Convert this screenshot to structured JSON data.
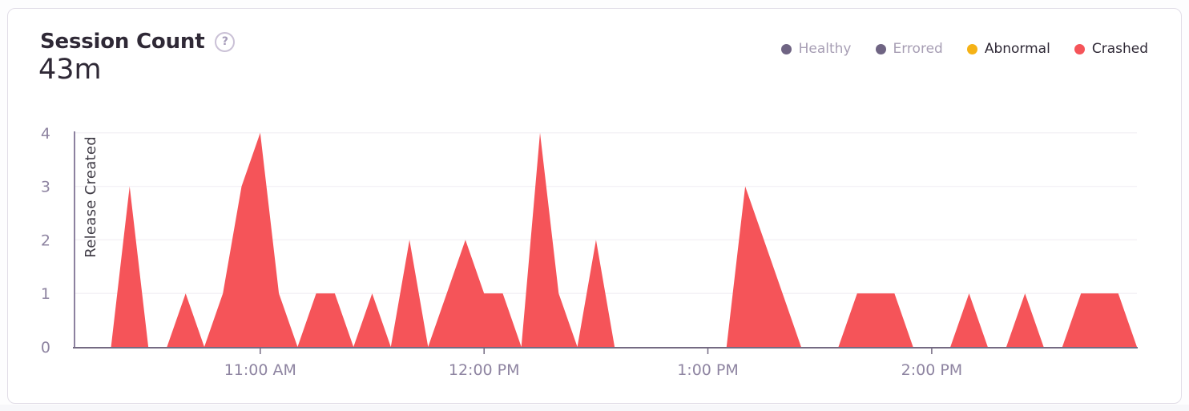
{
  "card": {
    "title": "Session Count",
    "help_icon": "?",
    "total": "43m",
    "legend": [
      {
        "label": "Healthy",
        "dot_color": "#6f6483",
        "text_color": "#a79eb4",
        "muted": true
      },
      {
        "label": "Errored",
        "dot_color": "#6f6483",
        "text_color": "#a79eb4",
        "muted": true
      },
      {
        "label": "Abnormal",
        "dot_color": "#f5b216",
        "text_color": "#2f2936",
        "muted": false
      },
      {
        "label": "Crashed",
        "dot_color": "#f55459",
        "text_color": "#2f2936",
        "muted": false
      }
    ]
  },
  "chart_data": {
    "type": "area",
    "title": "Session Count",
    "x_start": "10:10 AM",
    "x_end": "2:55 PM",
    "interval_minutes": 5,
    "ylim": [
      0,
      4
    ],
    "y_ticks": [
      "0",
      "1",
      "2",
      "3",
      "4"
    ],
    "x_ticks": [
      {
        "label": "11:00 AM",
        "minutes": 50
      },
      {
        "label": "12:00 PM",
        "minutes": 110
      },
      {
        "label": "1:00 PM",
        "minutes": 170
      },
      {
        "label": "2:00 PM",
        "minutes": 230
      }
    ],
    "grid": true,
    "legend_position": "top-right",
    "annotation": {
      "label": "Release Created",
      "time": "10:10 AM"
    },
    "series": [
      {
        "name": "Crashed",
        "color": "#f55459",
        "points": [
          [
            "10:10 AM",
            0
          ],
          [
            "10:15 AM",
            0
          ],
          [
            "10:20 AM",
            0
          ],
          [
            "10:25 AM",
            3
          ],
          [
            "10:30 AM",
            0
          ],
          [
            "10:35 AM",
            0
          ],
          [
            "10:40 AM",
            1
          ],
          [
            "10:45 AM",
            0
          ],
          [
            "10:50 AM",
            1
          ],
          [
            "10:55 AM",
            3
          ],
          [
            "11:00 AM",
            4
          ],
          [
            "11:05 AM",
            1
          ],
          [
            "11:10 AM",
            0
          ],
          [
            "11:15 AM",
            1
          ],
          [
            "11:20 AM",
            1
          ],
          [
            "11:25 AM",
            0
          ],
          [
            "11:30 AM",
            1
          ],
          [
            "11:35 AM",
            0
          ],
          [
            "11:40 AM",
            2
          ],
          [
            "11:45 AM",
            0
          ],
          [
            "11:50 AM",
            1
          ],
          [
            "11:55 AM",
            2
          ],
          [
            "12:00 PM",
            1
          ],
          [
            "12:05 PM",
            1
          ],
          [
            "12:10 PM",
            0
          ],
          [
            "12:15 PM",
            4
          ],
          [
            "12:20 PM",
            1
          ],
          [
            "12:25 PM",
            0
          ],
          [
            "12:30 PM",
            2
          ],
          [
            "12:35 PM",
            0
          ],
          [
            "12:40 PM",
            0
          ],
          [
            "12:45 PM",
            0
          ],
          [
            "12:50 PM",
            0
          ],
          [
            "12:55 PM",
            0
          ],
          [
            "1:00 PM",
            0
          ],
          [
            "1:05 PM",
            0
          ],
          [
            "1:10 PM",
            3
          ],
          [
            "1:15 PM",
            2
          ],
          [
            "1:20 PM",
            1
          ],
          [
            "1:25 PM",
            0
          ],
          [
            "1:30 PM",
            0
          ],
          [
            "1:35 PM",
            0
          ],
          [
            "1:40 PM",
            1
          ],
          [
            "1:45 PM",
            1
          ],
          [
            "1:50 PM",
            1
          ],
          [
            "1:55 PM",
            0
          ],
          [
            "2:00 PM",
            0
          ],
          [
            "2:05 PM",
            0
          ],
          [
            "2:10 PM",
            1
          ],
          [
            "2:15 PM",
            0
          ],
          [
            "2:20 PM",
            0
          ],
          [
            "2:25 PM",
            1
          ],
          [
            "2:30 PM",
            0
          ],
          [
            "2:35 PM",
            0
          ],
          [
            "2:40 PM",
            1
          ],
          [
            "2:45 PM",
            1
          ],
          [
            "2:50 PM",
            1
          ],
          [
            "2:55 PM",
            0
          ]
        ]
      }
    ],
    "unselected_series": [
      "Healthy",
      "Errored"
    ]
  },
  "colors": {
    "card_border": "#e1dde7",
    "card_bg": "#ffffff",
    "page_bg": "#fdfdfe",
    "heading": "#2f2936",
    "axis_label": "#8e84a1",
    "axis_line": "#746a82",
    "grid_line": "#f4f2f6",
    "release_line": "#8c819f",
    "release_text": "#403c46",
    "crashed": "#f55459",
    "peek_pink": "#f6bcbf"
  }
}
